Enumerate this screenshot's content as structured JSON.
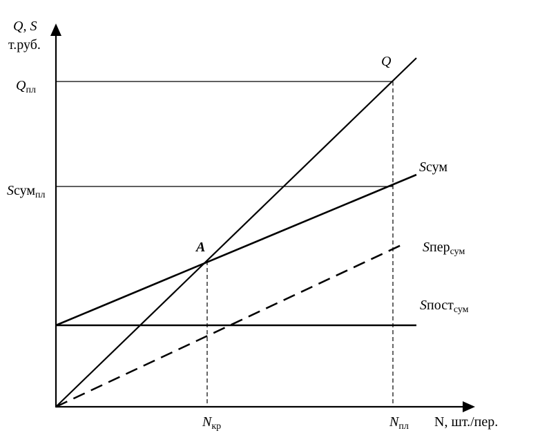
{
  "axes": {
    "y_label_line1": "Q, S",
    "y_label_line2": "т.руб.",
    "x_label": "N, шт./пер."
  },
  "y_ticks": {
    "q_pl_main": "Q",
    "q_pl_sub": "пл",
    "s_sum_pl_main": "S",
    "s_sum_pl_mid": "сум",
    "s_sum_pl_sub": "пл"
  },
  "x_ticks": {
    "n_kr_main": "N",
    "n_kr_sub": "кр",
    "n_pl_main": "N",
    "n_pl_sub": "пл"
  },
  "lines": {
    "q_label": "Q",
    "s_sum_main": "S",
    "s_sum_rest": "сум",
    "s_per_main": "S",
    "s_per_rest": "пер",
    "s_per_sub": "сум",
    "s_post_main": "S",
    "s_post_rest": "пост",
    "s_post_sub": "сум"
  },
  "point_a": "A"
}
